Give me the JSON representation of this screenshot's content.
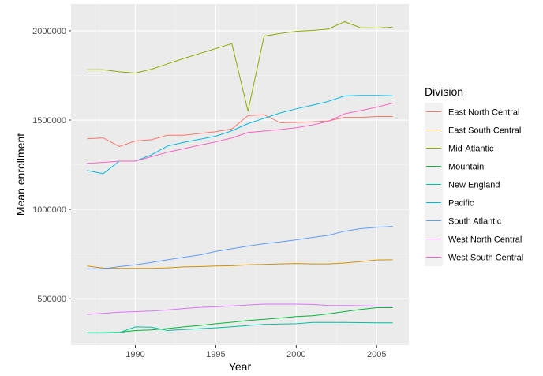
{
  "chart_data": {
    "type": "line",
    "xlabel": "Year",
    "ylabel": "Mean enrollment",
    "xlim": [
      1986,
      2007
    ],
    "ylim": [
      240000,
      2150000
    ],
    "x_ticks": [
      1990,
      1995,
      2000,
      2005
    ],
    "x_tick_labels": [
      "1990",
      "1995",
      "2000",
      "2005"
    ],
    "y_ticks": [
      500000,
      1000000,
      1500000,
      2000000
    ],
    "y_tick_labels": [
      "500000",
      "1000000",
      "1500000",
      "2000000"
    ],
    "grid": true,
    "legend": {
      "title": "Division",
      "placement": "right"
    },
    "x": [
      1987,
      1988,
      1989,
      1990,
      1991,
      1992,
      1993,
      1994,
      1995,
      1996,
      1997,
      1998,
      1999,
      2000,
      2001,
      2002,
      2003,
      2004,
      2005,
      2006
    ],
    "series": [
      {
        "name": "East North Central",
        "color": "#F8766D",
        "values": [
          1395000,
          1400000,
          1352000,
          1383000,
          1390000,
          1415000,
          1415000,
          1425000,
          1435000,
          1450000,
          1525000,
          1530000,
          1485000,
          1487000,
          1490000,
          1495000,
          1515000,
          1515000,
          1520000,
          1520000
        ]
      },
      {
        "name": "East South Central",
        "color": "#D39200",
        "values": [
          683000,
          672000,
          670000,
          670000,
          670000,
          673000,
          678000,
          680000,
          683000,
          685000,
          690000,
          692000,
          695000,
          697000,
          695000,
          695000,
          700000,
          708000,
          717000,
          718000
        ]
      },
      {
        "name": "Mid-Atlantic",
        "color": "#93AA00",
        "values": [
          1782000,
          1782000,
          1770000,
          1763000,
          1785000,
          1815000,
          1845000,
          1873000,
          1900000,
          1928000,
          1550000,
          1970000,
          1985000,
          1997000,
          2002000,
          2010000,
          2050000,
          2017000,
          2015000,
          2020000
        ]
      },
      {
        "name": "Mountain",
        "color": "#00BA38",
        "values": [
          310000,
          310000,
          312000,
          322000,
          325000,
          333000,
          342000,
          350000,
          360000,
          368000,
          378000,
          385000,
          392000,
          400000,
          405000,
          415000,
          428000,
          440000,
          450000,
          450000
        ]
      },
      {
        "name": "New England",
        "color": "#00C19F",
        "values": [
          308000,
          308000,
          310000,
          342000,
          341000,
          322000,
          327000,
          332000,
          337000,
          343000,
          350000,
          356000,
          358000,
          360000,
          367000,
          367000,
          367000,
          366000,
          365000,
          365000
        ]
      },
      {
        "name": "Pacific",
        "color": "#00B9E3",
        "values": [
          1218000,
          1200000,
          1270000,
          1270000,
          1305000,
          1355000,
          1375000,
          1392000,
          1410000,
          1440000,
          1480000,
          1510000,
          1540000,
          1563000,
          1583000,
          1605000,
          1635000,
          1638000,
          1638000,
          1636000
        ]
      },
      {
        "name": "South Atlantic",
        "color": "#619CFF",
        "values": [
          667000,
          668000,
          680000,
          690000,
          703000,
          718000,
          732000,
          745000,
          765000,
          780000,
          795000,
          808000,
          818000,
          830000,
          843000,
          855000,
          878000,
          892000,
          900000,
          905000
        ]
      },
      {
        "name": "West North Central",
        "color": "#DB72FB",
        "values": [
          412000,
          418000,
          425000,
          428000,
          431000,
          437000,
          445000,
          452000,
          455000,
          460000,
          465000,
          470000,
          470000,
          470000,
          468000,
          463000,
          462000,
          461000,
          459000,
          458000
        ]
      },
      {
        "name": "West South Central",
        "color": "#FF61C3",
        "values": [
          1258000,
          1263000,
          1270000,
          1270000,
          1295000,
          1320000,
          1340000,
          1360000,
          1378000,
          1400000,
          1430000,
          1438000,
          1447000,
          1457000,
          1472000,
          1493000,
          1535000,
          1553000,
          1572000,
          1595000
        ]
      }
    ]
  }
}
